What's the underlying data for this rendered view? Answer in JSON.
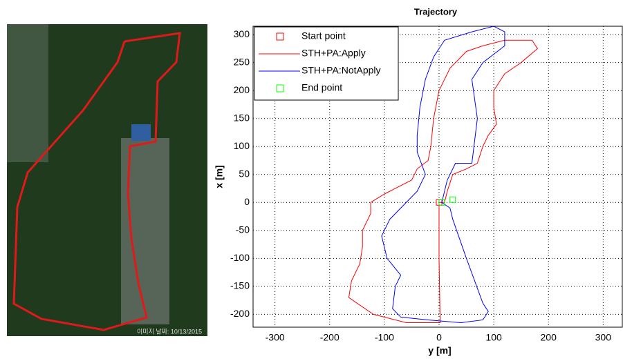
{
  "map": {
    "caption": "이미지 날짜: 10/13/2015"
  },
  "chart_data": {
    "type": "line",
    "title": "Trajectory",
    "xlabel": "y [m]",
    "ylabel": "x [m]",
    "xlim": [
      -340,
      335
    ],
    "ylim": [
      -223,
      315
    ],
    "xticks": [
      -300,
      -200,
      -100,
      0,
      100,
      200,
      300
    ],
    "yticks": [
      -200,
      -150,
      -100,
      -50,
      0,
      50,
      100,
      150,
      200,
      250,
      300
    ],
    "grid": true,
    "legend": "upper left",
    "series": [
      {
        "name": "Start point",
        "color": "#ff0000",
        "style": "marker",
        "x": [
          0
        ],
        "values": [
          0
        ]
      },
      {
        "name": "STH+PA:Apply",
        "color": "#ff0000",
        "style": "line",
        "x": [
          0,
          0,
          2,
          -60,
          -120,
          -165,
          -160,
          -145,
          -140,
          -140,
          -125,
          -125,
          -100,
          -70,
          -50,
          -40,
          -20,
          -15,
          -10,
          0,
          20,
          50,
          80,
          120,
          170,
          180,
          150,
          120,
          100,
          100,
          105,
          90,
          80,
          70,
          50,
          25,
          15,
          10,
          0
        ],
        "values": [
          0,
          -100,
          -215,
          -215,
          -200,
          -170,
          -140,
          -110,
          -80,
          -50,
          -20,
          0,
          15,
          30,
          40,
          60,
          75,
          100,
          150,
          200,
          240,
          270,
          280,
          290,
          290,
          275,
          250,
          230,
          200,
          170,
          140,
          120,
          100,
          70,
          60,
          50,
          20,
          0,
          0
        ]
      },
      {
        "name": "STH+PA:NotApply",
        "color": "#0000ff",
        "style": "line",
        "x": [
          5,
          20,
          25,
          50,
          80,
          90,
          80,
          40,
          -20,
          -70,
          -85,
          -80,
          -70,
          -95,
          -105,
          -90,
          -60,
          -40,
          -25,
          -40,
          -40,
          -35,
          -25,
          -10,
          10,
          60,
          100,
          120,
          120,
          80,
          60,
          70,
          65,
          60,
          30,
          15,
          5
        ],
        "values": [
          0,
          -10,
          -30,
          -100,
          -180,
          -195,
          -210,
          -215,
          -210,
          -205,
          -190,
          -150,
          -130,
          -100,
          -60,
          -30,
          0,
          20,
          50,
          90,
          120,
          170,
          220,
          260,
          290,
          305,
          315,
          305,
          280,
          250,
          220,
          150,
          110,
          70,
          70,
          40,
          0
        ]
      },
      {
        "name": "End point",
        "color": "#00ff00",
        "style": "marker",
        "x": [
          5,
          25
        ],
        "values": [
          0,
          5
        ]
      }
    ]
  }
}
